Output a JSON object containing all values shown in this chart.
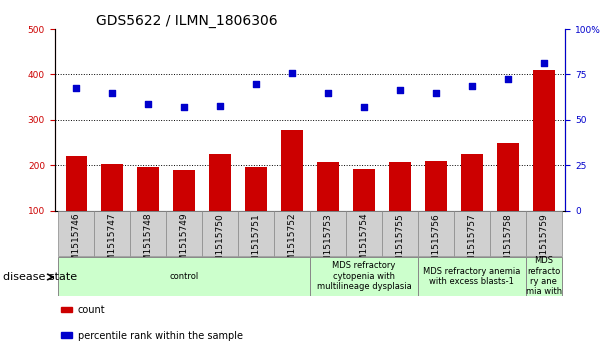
{
  "title": "GDS5622 / ILMN_1806306",
  "samples": [
    "GSM1515746",
    "GSM1515747",
    "GSM1515748",
    "GSM1515749",
    "GSM1515750",
    "GSM1515751",
    "GSM1515752",
    "GSM1515753",
    "GSM1515754",
    "GSM1515755",
    "GSM1515756",
    "GSM1515757",
    "GSM1515758",
    "GSM1515759"
  ],
  "counts": [
    220,
    203,
    195,
    190,
    225,
    195,
    278,
    208,
    191,
    207,
    210,
    225,
    248,
    410
  ],
  "percentiles": [
    370,
    358,
    335,
    328,
    330,
    378,
    403,
    360,
    328,
    365,
    360,
    375,
    390,
    425
  ],
  "bar_color": "#cc0000",
  "dot_color": "#0000cc",
  "left_ylim": [
    100,
    500
  ],
  "left_yticks": [
    100,
    200,
    300,
    400,
    500
  ],
  "right_ytick_positions": [
    100,
    200,
    300,
    400,
    500
  ],
  "right_yticklabels": [
    "0",
    "25",
    "50",
    "75",
    "100%"
  ],
  "grid_values": [
    200,
    300,
    400
  ],
  "disease_groups": [
    {
      "label": "control",
      "start": 0,
      "end": 7
    },
    {
      "label": "MDS refractory\ncytopenia with\nmultilineage dysplasia",
      "start": 7,
      "end": 10
    },
    {
      "label": "MDS refractory anemia\nwith excess blasts-1",
      "start": 10,
      "end": 13
    },
    {
      "label": "MDS\nrefracto\nry ane\nmia with",
      "start": 13,
      "end": 14
    }
  ],
  "disease_state_label": "disease state",
  "legend_count_label": "count",
  "legend_percentile_label": "percentile rank within the sample",
  "title_fontsize": 10,
  "tick_fontsize": 6.5,
  "label_fontsize": 8,
  "gray_box_color": "#d0d0d0",
  "green_box_color": "#ccffcc"
}
